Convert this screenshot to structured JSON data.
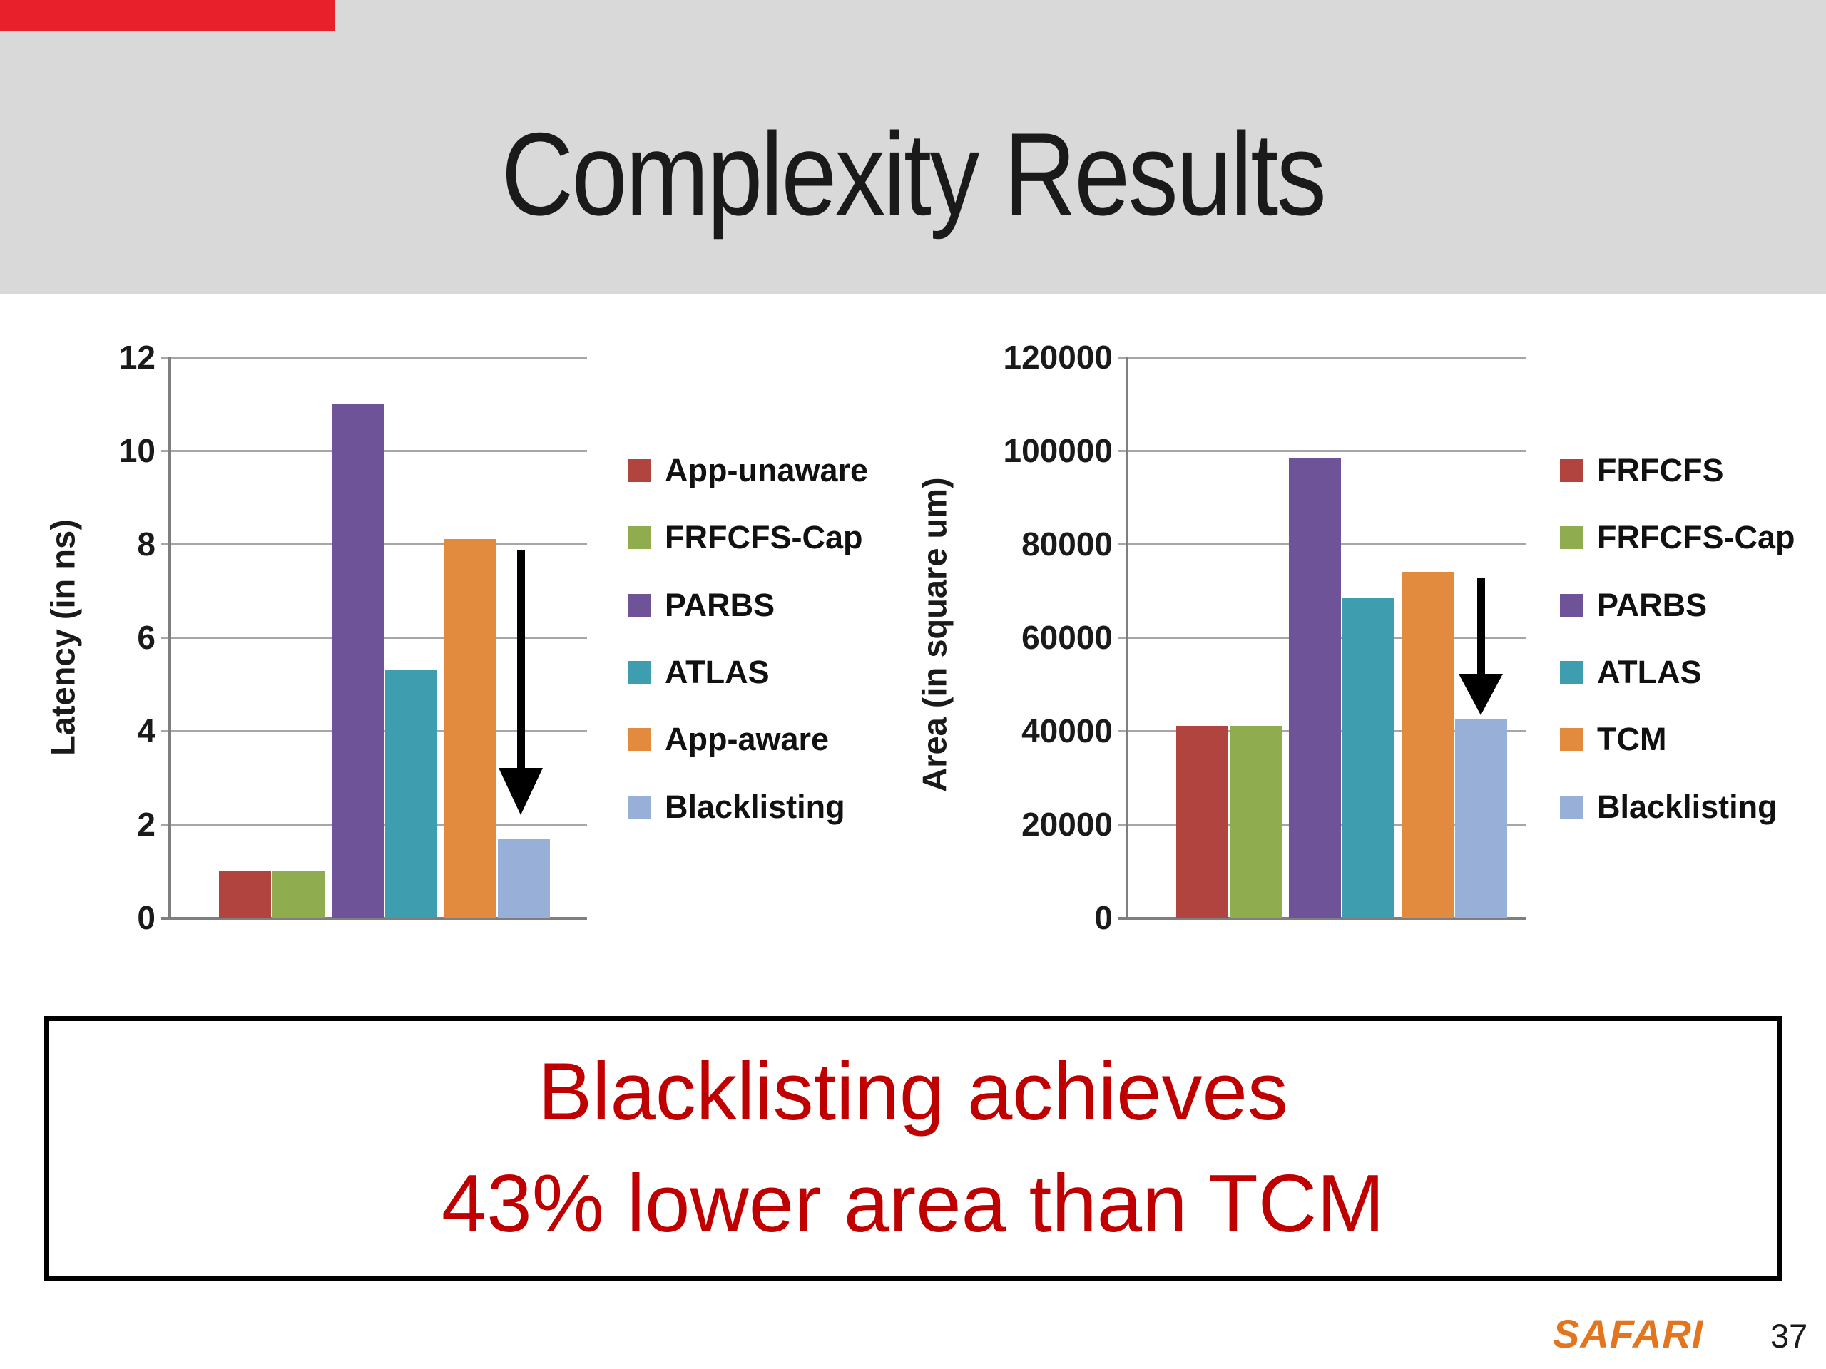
{
  "slide": {
    "title": "Complexity Results",
    "page_number": "37",
    "logo_text": "SAFARI",
    "header_bg": "#d9d9d9",
    "accent_bar_color": "#e8202b",
    "callout": {
      "line1": "Blacklisting achieves",
      "line2": "43% lower area than TCM",
      "text_color": "#C00000"
    }
  },
  "chart_data": [
    {
      "type": "bar",
      "name": "latency-chart",
      "title": "",
      "xlabel": "",
      "ylabel": "Latency (in ns)",
      "ylim": [
        0,
        12
      ],
      "yticks": [
        0,
        2,
        4,
        6,
        8,
        10,
        12
      ],
      "grid": true,
      "legend_position": "right",
      "categories": [
        "App-unaware",
        "FRFCFS-Cap",
        "PARBS",
        "ATLAS",
        "App-aware",
        "Blacklisting"
      ],
      "values": [
        1.0,
        1.0,
        11.0,
        5.3,
        8.1,
        1.7
      ],
      "series_colors": [
        "#B2443F",
        "#8FAC4E",
        "#6F5398",
        "#3E9DAE",
        "#E28A3D",
        "#98AFD7"
      ],
      "annotation": "black downward arrow pointing to Blacklisting bar"
    },
    {
      "type": "bar",
      "name": "area-chart",
      "title": "",
      "xlabel": "",
      "ylabel": "Area (in square um)",
      "ylim": [
        0,
        120000
      ],
      "yticks": [
        0,
        20000,
        40000,
        60000,
        80000,
        100000,
        120000
      ],
      "grid": true,
      "legend_position": "right",
      "categories": [
        "FRFCFS",
        "FRFCFS-Cap",
        "PARBS",
        "ATLAS",
        "TCM",
        "Blacklisting"
      ],
      "values": [
        41000,
        41000,
        98500,
        68500,
        74000,
        42500
      ],
      "series_colors": [
        "#B2443F",
        "#8FAC4E",
        "#6F5398",
        "#3E9DAE",
        "#E28A3D",
        "#98AFD7"
      ],
      "annotation": "black downward arrow pointing to Blacklisting bar"
    }
  ]
}
